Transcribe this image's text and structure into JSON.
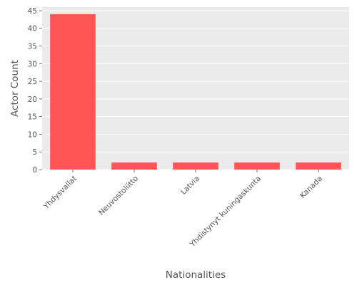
{
  "chart_data": {
    "type": "bar",
    "title": "",
    "xlabel": "Nationalities",
    "ylabel": "Actor Count",
    "categories": [
      "Yhdysvallat",
      "Neuvostoliitto",
      "Latvia",
      "Yhdistynyt kuningaskunta",
      "Kanada"
    ],
    "values": [
      44,
      2,
      2,
      2,
      2
    ],
    "ylim": [
      0,
      46
    ],
    "yticks": [
      0,
      5,
      10,
      15,
      20,
      25,
      30,
      35,
      40,
      45
    ],
    "grid": true,
    "legend": "none",
    "bar_color": "#ff5555",
    "background_color": "#ebebeb",
    "grid_color": "#ffffff"
  }
}
